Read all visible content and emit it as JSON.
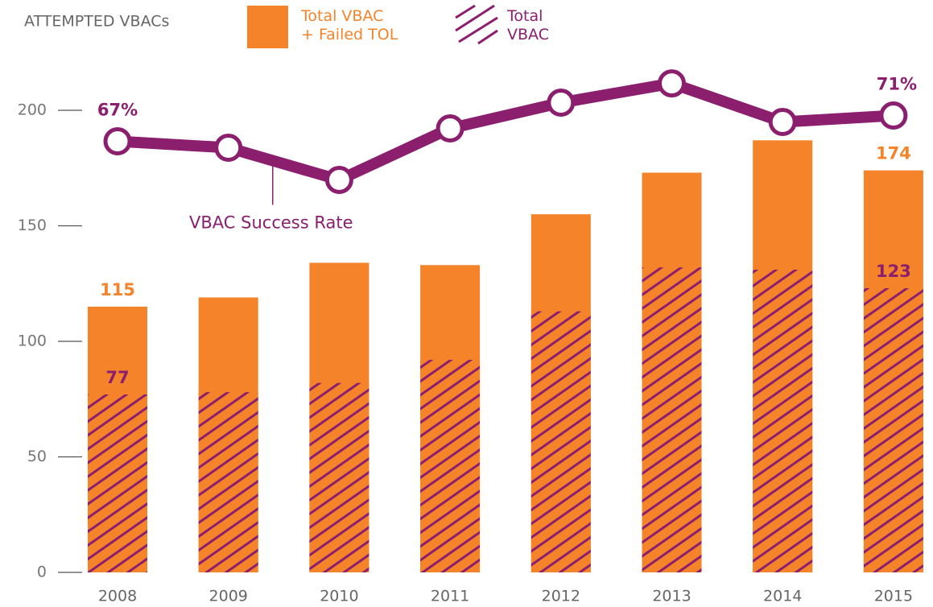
{
  "chart_data": {
    "type": "bar",
    "title": "ATTEMPTED VBACs",
    "categories": [
      "2008",
      "2009",
      "2010",
      "2011",
      "2012",
      "2013",
      "2014",
      "2015"
    ],
    "series": [
      {
        "name": "Total VBAC\n+ Failed TOL",
        "color": "#f5832a",
        "pattern": "solid",
        "values": [
          115,
          119,
          134,
          133,
          155,
          173,
          187,
          174
        ],
        "value_labels": [
          "115",
          null,
          null,
          null,
          null,
          null,
          null,
          "174"
        ]
      },
      {
        "name": "Total\nVBAC",
        "color": "#8b1f6e",
        "pattern": "hatch",
        "values": [
          77,
          78,
          82,
          92,
          113,
          132,
          131,
          123
        ],
        "value_labels": [
          "77",
          null,
          null,
          null,
          null,
          null,
          null,
          "123"
        ]
      },
      {
        "name": "VBAC Success Rate",
        "type": "line",
        "axis": "y2",
        "color": "#8b1f6e",
        "values": [
          67,
          66,
          61,
          69,
          73,
          76,
          70,
          71
        ],
        "value_labels": [
          "67%",
          null,
          null,
          null,
          null,
          null,
          null,
          "71%"
        ]
      }
    ],
    "annotations": [
      {
        "text": "VBAC Success Rate",
        "series": 2,
        "index": 1.4
      }
    ],
    "ylim": [
      0,
      220
    ],
    "yticks": [
      0,
      50,
      100,
      150,
      200
    ],
    "y2lim": [
      0,
      79
    ]
  }
}
